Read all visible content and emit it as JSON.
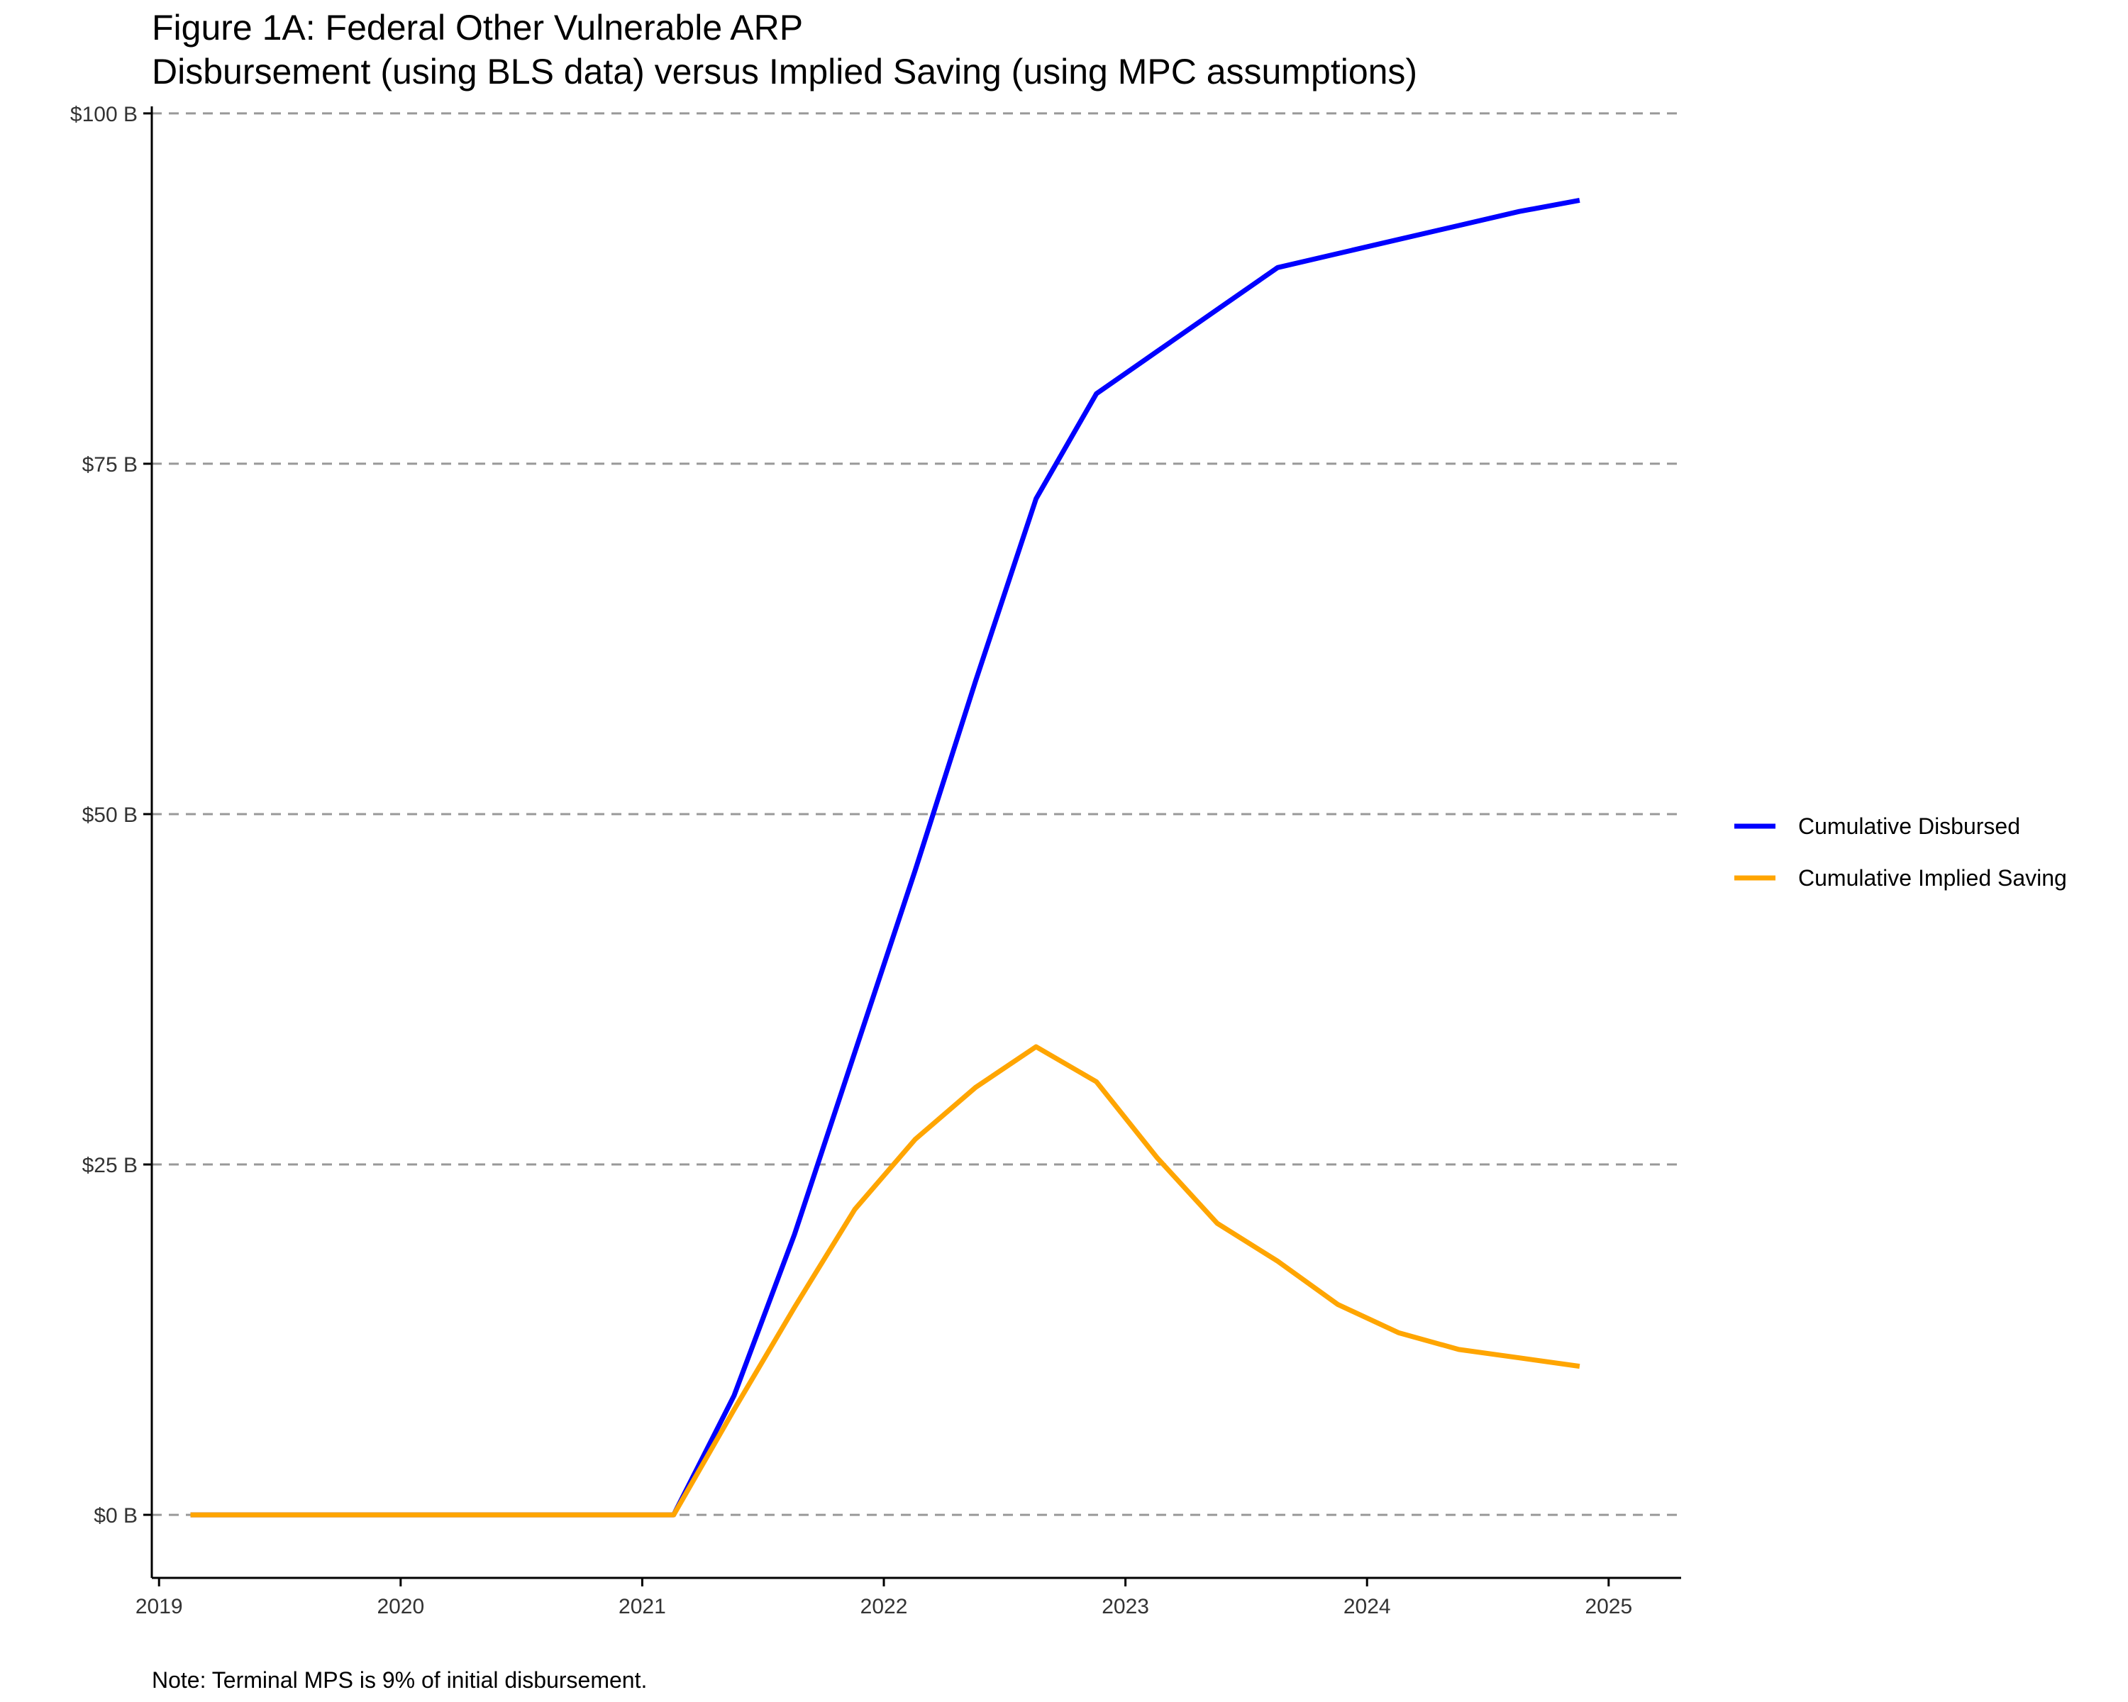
{
  "chart_data": {
    "type": "line",
    "title": "Figure 1A: Federal Other Vulnerable ARP",
    "subtitle": "Disbursement (using BLS data) versus Implied Saving (using MPC assumptions)",
    "xlabel": "",
    "ylabel": "",
    "xlim": [
      2018.97,
      2025.3
    ],
    "ylim": [
      -4.5,
      100.5
    ],
    "x_ticks": [
      {
        "value": 2019,
        "label": "2019"
      },
      {
        "value": 2020,
        "label": "2020"
      },
      {
        "value": 2021,
        "label": "2021"
      },
      {
        "value": 2022,
        "label": "2022"
      },
      {
        "value": 2023,
        "label": "2023"
      },
      {
        "value": 2024,
        "label": "2024"
      },
      {
        "value": 2025,
        "label": "2025"
      }
    ],
    "y_ticks": [
      {
        "value": 0,
        "label": "$0 B"
      },
      {
        "value": 25,
        "label": "$25 B"
      },
      {
        "value": 50,
        "label": "$50 B"
      },
      {
        "value": 75,
        "label": "$75 B"
      },
      {
        "value": 100,
        "label": "$100 B"
      }
    ],
    "grid": {
      "horizontal": true,
      "vertical": false,
      "style": "dashed"
    },
    "legend_position": "right",
    "series": [
      {
        "name": "Cumulative Disbursed",
        "color": "#0000FF",
        "points": [
          [
            2019.13,
            0
          ],
          [
            2020.13,
            0
          ],
          [
            2021.13,
            0
          ],
          [
            2021.38,
            8.5
          ],
          [
            2021.63,
            20
          ],
          [
            2021.88,
            33
          ],
          [
            2022.13,
            46
          ],
          [
            2022.38,
            59.5
          ],
          [
            2022.63,
            72.5
          ],
          [
            2022.88,
            80
          ],
          [
            2023.13,
            83
          ],
          [
            2023.38,
            86
          ],
          [
            2023.63,
            89
          ],
          [
            2023.88,
            90
          ],
          [
            2024.13,
            91
          ],
          [
            2024.38,
            92
          ],
          [
            2024.63,
            93
          ],
          [
            2024.88,
            93.8
          ]
        ]
      },
      {
        "name": "Cumulative Implied Saving",
        "color": "#FFA500",
        "points": [
          [
            2019.13,
            0
          ],
          [
            2020.13,
            0
          ],
          [
            2021.13,
            0
          ],
          [
            2021.38,
            7.5
          ],
          [
            2021.63,
            14.8
          ],
          [
            2021.88,
            21.8
          ],
          [
            2022.13,
            26.8
          ],
          [
            2022.38,
            30.5
          ],
          [
            2022.63,
            33.4
          ],
          [
            2022.88,
            30.9
          ],
          [
            2023.13,
            25.5
          ],
          [
            2023.38,
            20.8
          ],
          [
            2023.63,
            18.1
          ],
          [
            2023.88,
            15
          ],
          [
            2024.13,
            13
          ],
          [
            2024.38,
            11.8
          ],
          [
            2024.63,
            11.2
          ],
          [
            2024.88,
            10.6
          ]
        ]
      }
    ],
    "note": "Note: Terminal MPS is 9% of initial disbursement."
  }
}
